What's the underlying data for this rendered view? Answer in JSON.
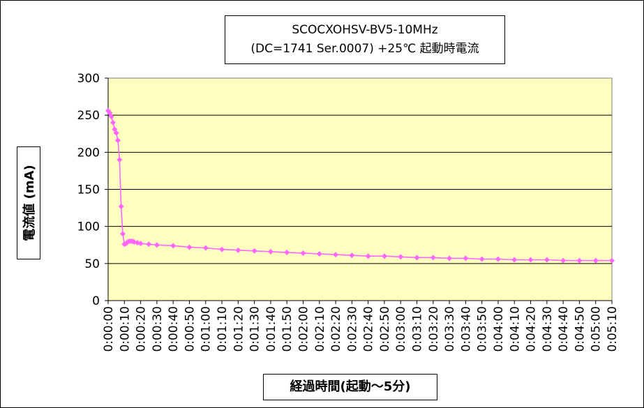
{
  "chart_data": {
    "type": "line",
    "title": "SCOCXOHSV-BV5-10MHz",
    "subtitle": "(DC=1741 Ser.0007) +25℃  起動時電流",
    "xlabel": "経過時間(起動～5分)",
    "ylabel": "電流値 (mA)",
    "ylim": [
      0,
      300
    ],
    "yticks": [
      "0",
      "50",
      "100",
      "150",
      "200",
      "250",
      "300"
    ],
    "xlim_seconds": [
      0,
      310
    ],
    "xticks": [
      "0:00:00",
      "0:00:10",
      "0:00:20",
      "0:00:30",
      "0:00:40",
      "0:00:50",
      "0:01:00",
      "0:01:10",
      "0:01:20",
      "0:01:30",
      "0:01:40",
      "0:01:50",
      "0:02:00",
      "0:02:10",
      "0:02:20",
      "0:02:30",
      "0:02:40",
      "0:02:50",
      "0:03:00",
      "0:03:10",
      "0:03:20",
      "0:03:30",
      "0:03:40",
      "0:03:50",
      "0:04:00",
      "0:04:10",
      "0:04:20",
      "0:04:30",
      "0:04:40",
      "0:04:50",
      "0:05:00",
      "0:05:10"
    ],
    "grid": "horizontal",
    "plot_background": "#ffffc0",
    "series_color": "#ff66ff",
    "series": [
      {
        "x_seconds": [
          0,
          1,
          2,
          3,
          4,
          5,
          6,
          7,
          8,
          9,
          10,
          11,
          12,
          13,
          14,
          15,
          16,
          18,
          20,
          25,
          30,
          40,
          50,
          60,
          70,
          80,
          90,
          100,
          110,
          120,
          130,
          140,
          150,
          160,
          170,
          180,
          190,
          200,
          210,
          220,
          230,
          240,
          250,
          260,
          270,
          280,
          290,
          300,
          310
        ],
        "values": [
          256,
          253,
          248,
          240,
          231,
          226,
          216,
          190,
          127,
          90,
          76,
          77,
          79,
          80,
          80,
          80,
          79,
          78,
          77,
          76,
          75,
          74,
          72,
          71,
          69,
          68,
          67,
          66,
          65,
          64,
          63,
          62,
          61,
          60,
          60,
          59,
          58,
          58,
          57,
          57,
          56,
          56,
          55,
          55,
          55,
          54,
          54,
          54,
          54
        ]
      }
    ]
  }
}
